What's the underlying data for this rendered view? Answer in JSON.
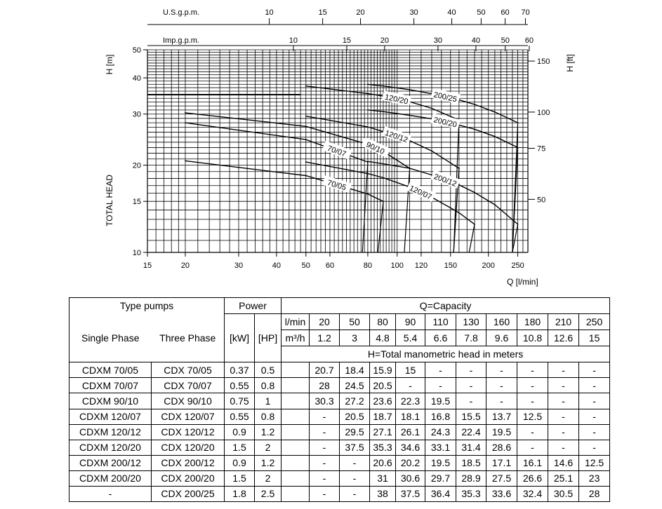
{
  "chart_data": {
    "type": "line",
    "xlabel": "Q [l/min]",
    "ylabel": "TOTAL HEAD",
    "ylabel_left_unit": "H [m]",
    "ylabel_right_unit": "H [ft]",
    "x_scale": "log",
    "y_scale": "log",
    "xlim": [
      15,
      270
    ],
    "ylim": [
      10,
      50
    ],
    "x_ticks": [
      15,
      20,
      30,
      40,
      50,
      60,
      80,
      100,
      120,
      150,
      200,
      250
    ],
    "y_ticks": [
      10,
      15,
      20,
      30,
      40,
      50
    ],
    "top_axis_usgpm": {
      "label": "U.S.g.p.m.",
      "ticks": [
        10,
        15,
        20,
        30,
        40,
        50,
        60,
        70
      ]
    },
    "top_axis_impgpm": {
      "label": "Imp.g.p.m.",
      "ticks": [
        10,
        15,
        20,
        30,
        40,
        50,
        60
      ]
    },
    "right_axis_ft": {
      "ticks": [
        50,
        75,
        100,
        150
      ]
    },
    "grid": true,
    "series": [
      {
        "name": "70/05",
        "x": [
          20,
          50,
          80,
          90
        ],
        "y": [
          20.7,
          18.4,
          15.9,
          15
        ]
      },
      {
        "name": "70/07",
        "x": [
          20,
          50,
          80
        ],
        "y": [
          28,
          24.5,
          20.5
        ]
      },
      {
        "name": "90/10",
        "x": [
          20,
          50,
          80,
          90,
          110
        ],
        "y": [
          30.3,
          27.2,
          23.6,
          22.3,
          19.5
        ]
      },
      {
        "name": "120/07",
        "x": [
          50,
          80,
          90,
          110,
          130,
          160,
          180
        ],
        "y": [
          20.5,
          18.7,
          18.1,
          16.8,
          15.5,
          13.7,
          12.5
        ]
      },
      {
        "name": "120/12",
        "x": [
          50,
          80,
          90,
          110,
          130,
          160
        ],
        "y": [
          29.5,
          27.1,
          26.1,
          24.3,
          22.4,
          19.5
        ]
      },
      {
        "name": "120/20",
        "x": [
          50,
          80,
          90,
          110,
          130,
          160
        ],
        "y": [
          37.5,
          35.3,
          34.6,
          33.1,
          31.4,
          28.6
        ]
      },
      {
        "name": "200/12",
        "x": [
          80,
          90,
          110,
          130,
          160,
          180,
          210,
          250
        ],
        "y": [
          20.6,
          20.2,
          19.5,
          18.5,
          17.1,
          16.1,
          14.6,
          12.5
        ]
      },
      {
        "name": "200/20",
        "x": [
          80,
          90,
          110,
          130,
          160,
          180,
          210,
          250
        ],
        "y": [
          31,
          30.6,
          29.7,
          28.9,
          27.5,
          26.6,
          25.1,
          23
        ]
      },
      {
        "name": "200/25",
        "x": [
          80,
          90,
          110,
          130,
          160,
          180,
          210,
          250
        ],
        "y": [
          38,
          37.5,
          36.4,
          35.3,
          33.6,
          32.4,
          30.5,
          28
        ]
      }
    ]
  },
  "table": {
    "type_pumps": "Type pumps",
    "power": "Power",
    "capacity": "Q=Capacity",
    "single_phase": "Single Phase",
    "three_phase": "Three Phase",
    "kw": "[kW]",
    "hp": "[HP]",
    "lmin_label": "l/min",
    "m3h_label": "m³/h",
    "head_note": "H=Total manometric head in meters",
    "lmin": [
      "20",
      "50",
      "80",
      "90",
      "110",
      "130",
      "160",
      "180",
      "210",
      "250"
    ],
    "m3h": [
      "1.2",
      "3",
      "4.8",
      "5.4",
      "6.6",
      "7.8",
      "9.6",
      "10.8",
      "12.6",
      "15"
    ],
    "rows": [
      {
        "single": "CDXM 70/05",
        "three": "CDX 70/05",
        "kw": "0.37",
        "hp": "0.5",
        "h": [
          "20.7",
          "18.4",
          "15.9",
          "15",
          "-",
          "-",
          "-",
          "-",
          "-",
          "-"
        ]
      },
      {
        "single": "CDXM 70/07",
        "three": "CDX 70/07",
        "kw": "0.55",
        "hp": "0.8",
        "h": [
          "28",
          "24.5",
          "20.5",
          "-",
          "-",
          "-",
          "-",
          "-",
          "-",
          "-"
        ]
      },
      {
        "single": "CDXM 90/10",
        "three": "CDX 90/10",
        "kw": "0.75",
        "hp": "1",
        "h": [
          "30.3",
          "27.2",
          "23.6",
          "22.3",
          "19.5",
          "-",
          "-",
          "-",
          "-",
          "-"
        ]
      },
      {
        "single": "CDXM 120/07",
        "three": "CDX 120/07",
        "kw": "0.55",
        "hp": "0.8",
        "h": [
          "-",
          "20.5",
          "18.7",
          "18.1",
          "16.8",
          "15.5",
          "13.7",
          "12.5",
          "-",
          "-"
        ]
      },
      {
        "single": "CDXM 120/12",
        "three": "CDX 120/12",
        "kw": "0.9",
        "hp": "1.2",
        "h": [
          "-",
          "29.5",
          "27.1",
          "26.1",
          "24.3",
          "22.4",
          "19.5",
          "-",
          "-",
          "-"
        ]
      },
      {
        "single": "CDXM 120/20",
        "three": "CDX 120/20",
        "kw": "1.5",
        "hp": "2",
        "h": [
          "-",
          "37.5",
          "35.3",
          "34.6",
          "33.1",
          "31.4",
          "28.6",
          "-",
          "-",
          "-"
        ]
      },
      {
        "single": "CDXM 200/12",
        "three": "CDX 200/12",
        "kw": "0.9",
        "hp": "1.2",
        "h": [
          "-",
          "-",
          "20.6",
          "20.2",
          "19.5",
          "18.5",
          "17.1",
          "16.1",
          "14.6",
          "12.5"
        ]
      },
      {
        "single": "CDXM 200/20",
        "three": "CDX 200/20",
        "kw": "1.5",
        "hp": "2",
        "h": [
          "-",
          "-",
          "31",
          "30.6",
          "29.7",
          "28.9",
          "27.5",
          "26.6",
          "25.1",
          "23"
        ]
      },
      {
        "single": "-",
        "three": "CDX 200/25",
        "kw": "1.8",
        "hp": "2.5",
        "h": [
          "-",
          "-",
          "38",
          "37.5",
          "36.4",
          "35.3",
          "33.6",
          "32.4",
          "30.5",
          "28"
        ]
      }
    ]
  }
}
